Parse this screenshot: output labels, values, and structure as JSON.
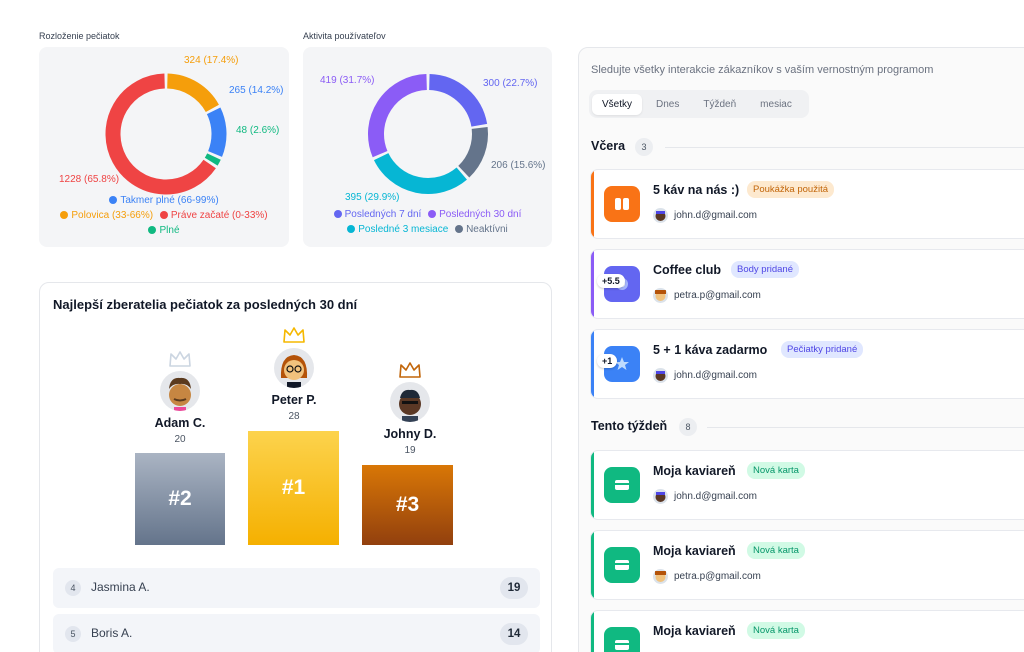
{
  "chart1": {
    "title": "Rozloženie pečiatok",
    "chart_data": {
      "type": "pie",
      "title": "Rozloženie pečiatok",
      "labels": [
        "Takmer plné (66-99%)",
        "Polovica (33-66%)",
        "Práve začaté (0-33%)",
        "Plné"
      ],
      "values": [
        265,
        324,
        1228,
        48
      ],
      "percents": [
        14.2,
        17.4,
        65.8,
        2.6
      ],
      "slice_labels": [
        "265 (14.2%)",
        "324 (17.4%)",
        "1228 (65.8%)",
        "48 (2.6%)"
      ],
      "colors": [
        "#3b82f6",
        "#f59e0b",
        "#ef4444",
        "#10b981"
      ],
      "legend": "bottom"
    }
  },
  "chart2": {
    "title": "Aktivita používateľov",
    "chart_data": {
      "type": "pie",
      "title": "Aktivita používateľov",
      "labels": [
        "Posledných 7 dní",
        "Posledných 30 dní",
        "Posledné 3 mesiace",
        "Neaktívni"
      ],
      "values": [
        300,
        419,
        395,
        206
      ],
      "percents": [
        22.7,
        31.7,
        29.9,
        15.6
      ],
      "slice_labels": [
        "300 (22.7%)",
        "419 (31.7%)",
        "395 (29.9%)",
        "206 (15.6%)"
      ],
      "colors": [
        "#6366f1",
        "#8b5cf6",
        "#06b6d4",
        "#64748b"
      ],
      "legend": "bottom"
    }
  },
  "podium": {
    "title": "Najlepší zberatelia pečiatok za posledných 30 dní",
    "places": [
      {
        "name": "Adam C.",
        "score": "20",
        "rank": "#2"
      },
      {
        "name": "Peter P.",
        "score": "28",
        "rank": "#1"
      },
      {
        "name": "Johny D.",
        "score": "19",
        "rank": "#3"
      }
    ],
    "ranking": [
      {
        "num": "4",
        "name": "Jasmina A.",
        "points": "19"
      },
      {
        "num": "5",
        "name": "Boris A.",
        "points": "14"
      }
    ]
  },
  "activity": {
    "header": "Sledujte všetky interakcie zákazníkov s vaším vernostným programom",
    "tabs": [
      "Všetky",
      "Dnes",
      "Týždeň",
      "mesiac"
    ],
    "sections": [
      {
        "label": "Včera",
        "count": "3",
        "items": [
          {
            "title": "5 káv na nás :)",
            "badge": "Poukážka použitá",
            "user": "john.d@gmail.com",
            "points": ""
          },
          {
            "title": "Coffee club",
            "badge": "Body pridané",
            "user": "petra.p@gmail.com",
            "points": "+5.5"
          },
          {
            "title": "5 + 1 káva zadarmo",
            "badge": "Pečiatky pridané",
            "user": "john.d@gmail.com",
            "points": "+1"
          }
        ]
      },
      {
        "label": "Tento týždeň",
        "count": "8",
        "items": [
          {
            "title": "Moja kaviareň",
            "badge": "Nová karta",
            "user": "john.d@gmail.com"
          },
          {
            "title": "Moja kaviareň",
            "badge": "Nová karta",
            "user": "petra.p@gmail.com"
          },
          {
            "title": "Moja kaviareň",
            "badge": "Nová karta",
            "user": ""
          }
        ]
      }
    ]
  }
}
